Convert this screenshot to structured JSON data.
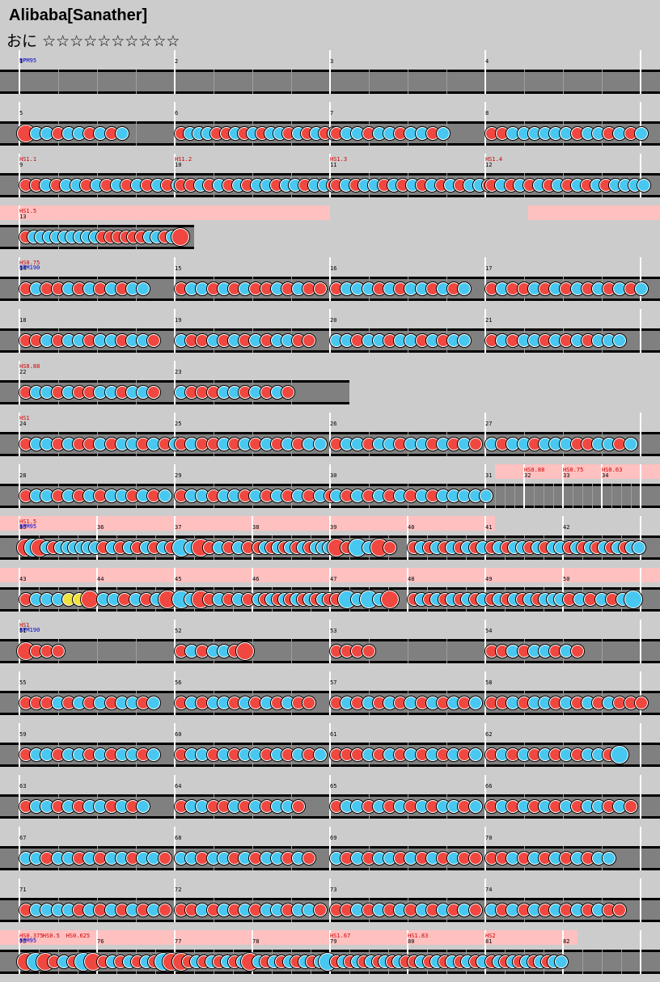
{
  "song": {
    "title": "Alibaba[Sanather]",
    "difficulty_label": "おに",
    "stars": "☆☆☆☆☆☆☆☆☆☆"
  },
  "colors": {
    "background": "#cccccc",
    "lane": "#808080",
    "don": "#f04840",
    "ka": "#48c8f0",
    "roll": "#f0e040",
    "hs_text": "#d00000",
    "bpm_text": "#0000c8",
    "gogo_highlight": "#ffc0c0"
  },
  "rows": [
    {
      "measures": [
        "1",
        "2",
        "3",
        "4"
      ],
      "count": 4,
      "events": [
        {
          "type": "bpm",
          "text": "BPM95",
          "col": 0
        }
      ],
      "highlights": [],
      "notes": ""
    },
    {
      "measures": [
        "5",
        "6",
        "7",
        "8"
      ],
      "count": 4,
      "events": [],
      "highlights": [],
      "notes": "Dkkdkkdkdk dkkkddkdkdkkdkdkdk dkkdkkdkkdk ddkkkkkkdkkdkdk"
    },
    {
      "measures": [
        "9",
        "10",
        "11",
        "12"
      ],
      "count": 4,
      "events": [
        {
          "type": "hs",
          "text": "HS1.1",
          "col": 0
        },
        {
          "type": "hs",
          "text": "HS1.2",
          "col": 1
        },
        {
          "type": "hs",
          "text": "HS1.3",
          "col": 2
        },
        {
          "type": "hs",
          "text": "HS1.4",
          "col": 3
        }
      ],
      "highlights": [],
      "notes": "ddkdkkdkdkdkdkdk ddkdkdkdkkdkkdkkd dkdkkdkdkdkdkdkkd dkdkdkdkdkdkdkkkk"
    },
    {
      "measures": [
        "13"
      ],
      "count": 1,
      "events": [
        {
          "type": "hs",
          "text": "HS1.5",
          "col": 0
        }
      ],
      "highlights": [
        {
          "from": 0,
          "to": 0.5
        },
        {
          "from": 0.8,
          "to": 1
        }
      ],
      "notes": "dkkkkkkkkkddddddkkdkD"
    },
    {
      "measures": [
        "14",
        "15",
        "16",
        "17"
      ],
      "count": 4,
      "events": [
        {
          "type": "hs",
          "text": "HS0.75",
          "col": 0
        },
        {
          "type": "bpm",
          "text": "BPM190",
          "col": 0
        }
      ],
      "highlights": [],
      "notes": "dkddkdkdkdkk dkkdkdkddkdkdd dkkkdkdkkdkdk dkddkdkdkdkdkdk"
    },
    {
      "measures": [
        "18",
        "19",
        "20",
        "21"
      ],
      "count": 4,
      "events": [],
      "highlights": [],
      "notes": "ddkdkkdkkdkkd kddkdkdkdkkdd kkdkkdkkdkdkk dkdkkdkdkdkkk"
    },
    {
      "measures": [
        "22",
        "23"
      ],
      "count": 2,
      "events": [
        {
          "type": "hs",
          "text": "HS0.88",
          "col": 0
        }
      ],
      "highlights": [],
      "notes": "dkkdkddkkdkkd kdddkkdkdkd"
    },
    {
      "measures": [
        "24",
        "25",
        "26",
        "27"
      ],
      "count": 4,
      "events": [
        {
          "type": "hs",
          "text": "HS1",
          "col": 0
        }
      ],
      "highlights": [],
      "notes": "dkkdkddkdkkdkdk dkddkdkdkdkdkk dkkdkkdkkdkdkd kdkkdkkkddkkdk"
    },
    {
      "measures": [
        "28",
        "29",
        "30"
      ],
      "count": 3,
      "events": [
        {
          "type": "hs",
          "text": "HS0.88",
          "col": 4
        },
        {
          "type": "hs",
          "text": "HS0.75",
          "col": 5
        },
        {
          "type": "hs",
          "text": "HS0.63",
          "col": 6
        }
      ],
      "extraMeasures": [
        "31",
        "32",
        "33",
        "34"
      ],
      "highlights": [
        {
          "from": 0.75,
          "to": 1
        }
      ],
      "notes": "dkkdkdkdkkdkdk dkkdkkdkdkdkdkd kdkdkdkdkdkkkkk"
    },
    {
      "measures": [
        "35",
        "36",
        "37",
        "38",
        "39",
        "40",
        "41",
        "42"
      ],
      "count": 8,
      "events": [
        {
          "type": "hs",
          "text": "HS1.5",
          "col": 0
        },
        {
          "type": "bpm",
          "text": "BPM95",
          "col": 0
        }
      ],
      "highlights": [
        {
          "from": 0,
          "to": 0.75
        }
      ],
      "notes": "DKDkdkkkkkk dkdkdkdkd KkDdkdkd dkdkdkdkdkkk DdKkDd dkdkdkdkdk dkdkkdkdkk dkdkdkdkdkk"
    },
    {
      "measures": [
        "43",
        "44",
        "45",
        "46",
        "47",
        "48",
        "49",
        "50"
      ],
      "count": 8,
      "events": [],
      "highlights": [
        {
          "from": 0,
          "to": 1
        }
      ],
      "notes": "dkkkyyD kkdkdkD KkDdkdkd kdkdkdkdkdkd dKkKkD dkdkdkdkdk dkdkdkdkkk dkdkdkK"
    },
    {
      "measures": [
        "51",
        "52",
        "53",
        "54"
      ],
      "count": 4,
      "events": [
        {
          "type": "hs",
          "text": "HS1",
          "col": 0
        },
        {
          "type": "bpm",
          "text": "BPM190",
          "col": 0
        }
      ],
      "highlights": [],
      "notes": "Dddd dkdkkdD dddd ddkdkkdkd"
    },
    {
      "measures": [
        "55",
        "56",
        "57",
        "58"
      ],
      "count": 4,
      "events": [],
      "highlights": [],
      "notes": "dddkdkdkdkkdk dkdkkdkdkdkdd dkdkdkdkdkdkdk ddkdkkdkdkdkddd"
    },
    {
      "measures": [
        "59",
        "60",
        "61",
        "62"
      ],
      "count": 4,
      "events": [],
      "highlights": [],
      "notes": "dkkdkkdkdkkdk dkkdkdkkdkdkdk dddkdkdkdkdkdk dkdkdkdkdkkdK"
    },
    {
      "measures": [
        "63",
        "64",
        "65",
        "66"
      ],
      "count": 4,
      "events": [],
      "highlights": [],
      "notes": "dkkdkdkkdkdk dkkddkdkdkkd dkkdkdkdkdkkdk dkdkdkdkdkkdkd"
    },
    {
      "measures": [
        "67",
        "68",
        "69",
        "70"
      ],
      "count": 4,
      "events": [],
      "highlights": [],
      "notes": "kkdkkdkdkkdkkd kkdkkdkdkkdkd kdkdkkdkdkdkdd ddkdkdkdkdkk"
    },
    {
      "measures": [
        "71",
        "72",
        "73",
        "74"
      ],
      "count": 4,
      "events": [],
      "highlights": [],
      "notes": "dkkkkdkdkdkdkd ddkdkdkdkkdkkd ddkdkdkdkdkdkd kdkdkdkdkdkdd"
    },
    {
      "measures": [
        "75",
        "76",
        "77",
        "78",
        "79",
        "80",
        "81",
        "82"
      ],
      "count": 8,
      "events": [
        {
          "type": "hs",
          "text": "HS0.375",
          "col": 0
        },
        {
          "type": "hs",
          "text": "HS0.5",
          "col": 0.3
        },
        {
          "type": "hs",
          "text": "HS0.625",
          "col": 0.6
        },
        {
          "type": "bpm",
          "text": "BPM95",
          "col": 0
        },
        {
          "type": "hs",
          "text": "HS1.67",
          "col": 4
        },
        {
          "type": "hs",
          "text": "HS1.83",
          "col": 5
        },
        {
          "type": "hs",
          "text": "HS2",
          "col": 6
        }
      ],
      "highlights": [
        {
          "from": 0,
          "to": 0.875
        }
      ],
      "notes": "DKDdkdKD dkdkdkdKD DdkdkdkdkD kdkdkdkdkK dkdkdkdkdkd dkdkdkdkdk dkdkdkdkdkk"
    }
  ]
}
